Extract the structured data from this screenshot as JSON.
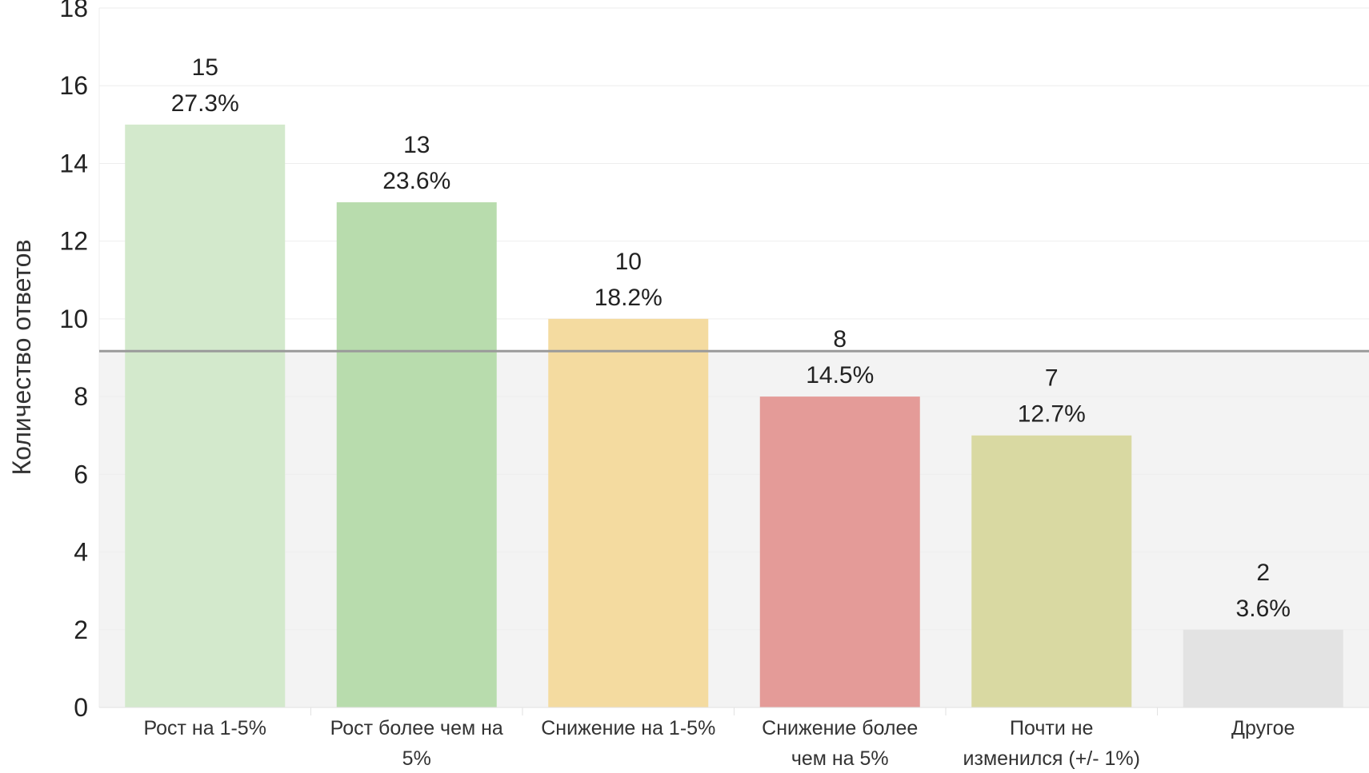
{
  "chart_data": {
    "type": "bar",
    "title": "",
    "xlabel": "",
    "ylabel": "Количество ответов",
    "ylim": [
      0,
      18
    ],
    "yticks": [
      0,
      2,
      4,
      6,
      8,
      10,
      12,
      14,
      16,
      18
    ],
    "grid": true,
    "reference_line": 9.17,
    "categories": [
      [
        "Рост  на 1-5%"
      ],
      [
        "Рост более чем на",
        "5%"
      ],
      [
        "Снижение на 1-5%"
      ],
      [
        "Снижение более",
        "чем на 5%"
      ],
      [
        "Почти не",
        "изменился (+/- 1%)"
      ],
      [
        "Другое"
      ]
    ],
    "values": [
      15,
      13,
      10,
      8,
      7,
      2
    ],
    "percent_labels": [
      "27.3%",
      "23.6%",
      "18.2%",
      "14.5%",
      "12.7%",
      "3.6%"
    ],
    "colors": [
      "#d3e9cc",
      "#b8dcad",
      "#f4dba0",
      "#e49b98",
      "#d9d9a2",
      "#e3e3e3"
    ],
    "band_color": "#f3f3f3",
    "reference_line_color": "#9a9a9a",
    "gridline_color": "#eeeeee"
  }
}
